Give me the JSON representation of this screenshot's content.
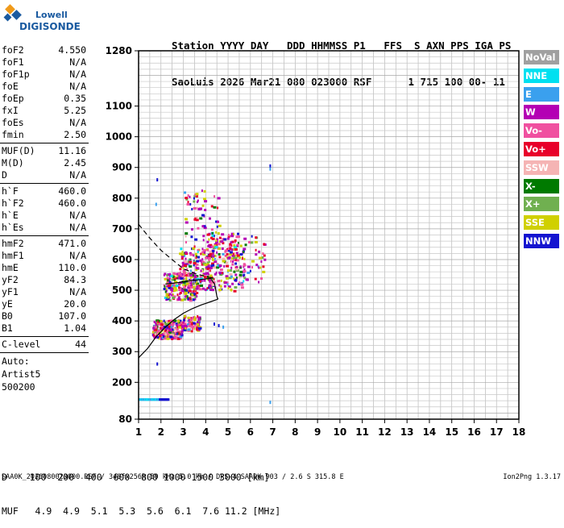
{
  "brand": {
    "line1": "Lowell",
    "line2": "DIGISONDE",
    "color": "#1a5aa0"
  },
  "header": {
    "line1": "Station YYYY DAY   DDD HHMMSS P1   FFS  S AXN PPS IGA PS",
    "line2": "SaoLuis 2026 Mar21 080 023000 RSF      1 715 100 00- 11"
  },
  "params": [
    {
      "label": "foF2",
      "value": "4.550"
    },
    {
      "label": "foF1",
      "value": "N/A"
    },
    {
      "label": "foF1p",
      "value": "N/A"
    },
    {
      "label": "foE",
      "value": "N/A"
    },
    {
      "label": "foEp",
      "value": "0.35"
    },
    {
      "label": "fxI",
      "value": "5.25"
    },
    {
      "label": "foEs",
      "value": "N/A"
    },
    {
      "label": "fmin",
      "value": "2.50",
      "sep": true
    },
    {
      "label": "MUF(D)",
      "value": "11.16"
    },
    {
      "label": "M(D)",
      "value": "2.45"
    },
    {
      "label": "D",
      "value": "N/A",
      "sep": true
    },
    {
      "label": "h`F",
      "value": "460.0"
    },
    {
      "label": "h`F2",
      "value": "460.0"
    },
    {
      "label": "h`E",
      "value": "N/A"
    },
    {
      "label": "h`Es",
      "value": "N/A",
      "sep": true
    },
    {
      "label": "hmF2",
      "value": "471.0"
    },
    {
      "label": "hmF1",
      "value": "N/A"
    },
    {
      "label": "hmE",
      "value": "110.0"
    },
    {
      "label": "yF2",
      "value": "84.3"
    },
    {
      "label": "yF1",
      "value": "N/A"
    },
    {
      "label": "yE",
      "value": "20.0"
    },
    {
      "label": "B0",
      "value": "107.0"
    },
    {
      "label": "B1",
      "value": "1.04",
      "sep": true
    },
    {
      "label": "C-level",
      "value": "44",
      "sep": true
    }
  ],
  "auto": {
    "line1": "Auto:",
    "line2": "Artist5",
    "line3": "500200"
  },
  "legend": [
    {
      "label": "NoVal",
      "color": "#a0a0a0"
    },
    {
      "label": "NNE",
      "color": "#00e0f0"
    },
    {
      "label": "E",
      "color": "#3aa0ee"
    },
    {
      "label": "W",
      "color": "#b400b4"
    },
    {
      "label": "Vo-",
      "color": "#f050a0"
    },
    {
      "label": "Vo+",
      "color": "#e8002a"
    },
    {
      "label": "SSW",
      "color": "#f5b4b4"
    },
    {
      "label": "X-",
      "color": "#007a00"
    },
    {
      "label": "X+",
      "color": "#70b050"
    },
    {
      "label": "SSE",
      "color": "#d0d000"
    },
    {
      "label": "NNW",
      "color": "#1414d0"
    }
  ],
  "bottom": {
    "d_line": "D    100  200  400  600  800 1000 1500 3000 [km]",
    "muf_line": "MUF   4.9  4.9  5.1  5.3  5.6  6.1  7.6 11.2 [MHz]"
  },
  "footer": {
    "left": "SAA0K_2026080023000.RSF / 340fx256h 50 kHz 5.0 km / DPS-4 SAA0K 903 / 2.6 S 315.8 E",
    "right": "Ion2Png 1.3.17"
  },
  "chart_data": {
    "type": "scatter",
    "xlim": [
      1,
      18
    ],
    "ylim": [
      80,
      1280
    ],
    "xticks": [
      "1",
      "2",
      "3",
      "4",
      "5",
      "6",
      "7",
      "8",
      "9",
      "10",
      "11",
      "12",
      "13",
      "14",
      "15",
      "16",
      "17",
      "18"
    ],
    "yticks": [
      {
        "value": 80,
        "label": "80"
      },
      {
        "value": 200,
        "label": "200"
      },
      {
        "value": 300,
        "label": "300"
      },
      {
        "value": 400,
        "label": "400"
      },
      {
        "value": 500,
        "label": "500"
      },
      {
        "value": 600,
        "label": "600"
      },
      {
        "value": 700,
        "label": "700"
      },
      {
        "value": 800,
        "label": "800"
      },
      {
        "value": 900,
        "label": "900"
      },
      {
        "value": 1000,
        "label": "1000"
      },
      {
        "value": 1100,
        "label": "1100"
      },
      {
        "value": 1280,
        "label": "1280"
      }
    ],
    "grid": true,
    "clusters": [
      {
        "x": [
          1.6,
          2.9
        ],
        "y": [
          345,
          405
        ],
        "n": 260
      },
      {
        "x": [
          2.9,
          3.7
        ],
        "y": [
          370,
          420
        ],
        "n": 90
      },
      {
        "x": [
          2.1,
          3.6
        ],
        "y": [
          470,
          560
        ],
        "n": 220
      },
      {
        "x": [
          2.8,
          4.3
        ],
        "y": [
          500,
          640
        ],
        "n": 200
      },
      {
        "x": [
          4.0,
          5.7
        ],
        "y": [
          500,
          690
        ],
        "n": 220
      },
      {
        "x": [
          3.0,
          4.6
        ],
        "y": [
          640,
          830
        ],
        "n": 70
      },
      {
        "x": [
          5.6,
          6.6
        ],
        "y": [
          530,
          680
        ],
        "n": 40
      }
    ],
    "sparse_points": [
      {
        "x": 1.8,
        "y": 865
      },
      {
        "x": 6.85,
        "y": 910
      },
      {
        "x": 6.85,
        "y": 900
      },
      {
        "x": 1.75,
        "y": 785
      },
      {
        "x": 1.8,
        "y": 265
      },
      {
        "x": 6.85,
        "y": 140
      },
      {
        "x": 4.35,
        "y": 395
      },
      {
        "x": 4.55,
        "y": 390
      },
      {
        "x": 4.75,
        "y": 385
      }
    ],
    "low_band": {
      "x": [
        1.0,
        2.3
      ],
      "y": [
        140,
        148
      ]
    },
    "traces": [
      {
        "style": "solid",
        "points": [
          [
            1.0,
            280
          ],
          [
            1.4,
            310
          ],
          [
            1.8,
            350
          ],
          [
            2.2,
            380
          ],
          [
            2.6,
            405
          ],
          [
            3.0,
            425
          ],
          [
            3.4,
            440
          ],
          [
            3.8,
            452
          ],
          [
            4.2,
            462
          ],
          [
            4.55,
            471
          ]
        ]
      },
      {
        "style": "solid",
        "points": [
          [
            4.55,
            471
          ],
          [
            4.5,
            480
          ],
          [
            4.4,
            520
          ],
          [
            4.25,
            535
          ]
        ]
      },
      {
        "style": "solid",
        "points": [
          [
            2.2,
            520
          ],
          [
            2.8,
            525
          ],
          [
            3.4,
            532
          ],
          [
            3.9,
            536
          ],
          [
            4.35,
            540
          ]
        ]
      },
      {
        "style": "dashed",
        "points": [
          [
            1.0,
            715
          ],
          [
            1.5,
            670
          ],
          [
            2.0,
            630
          ],
          [
            2.5,
            600
          ],
          [
            3.0,
            570
          ],
          [
            3.5,
            555
          ],
          [
            4.0,
            545
          ],
          [
            4.3,
            540
          ]
        ]
      }
    ]
  }
}
